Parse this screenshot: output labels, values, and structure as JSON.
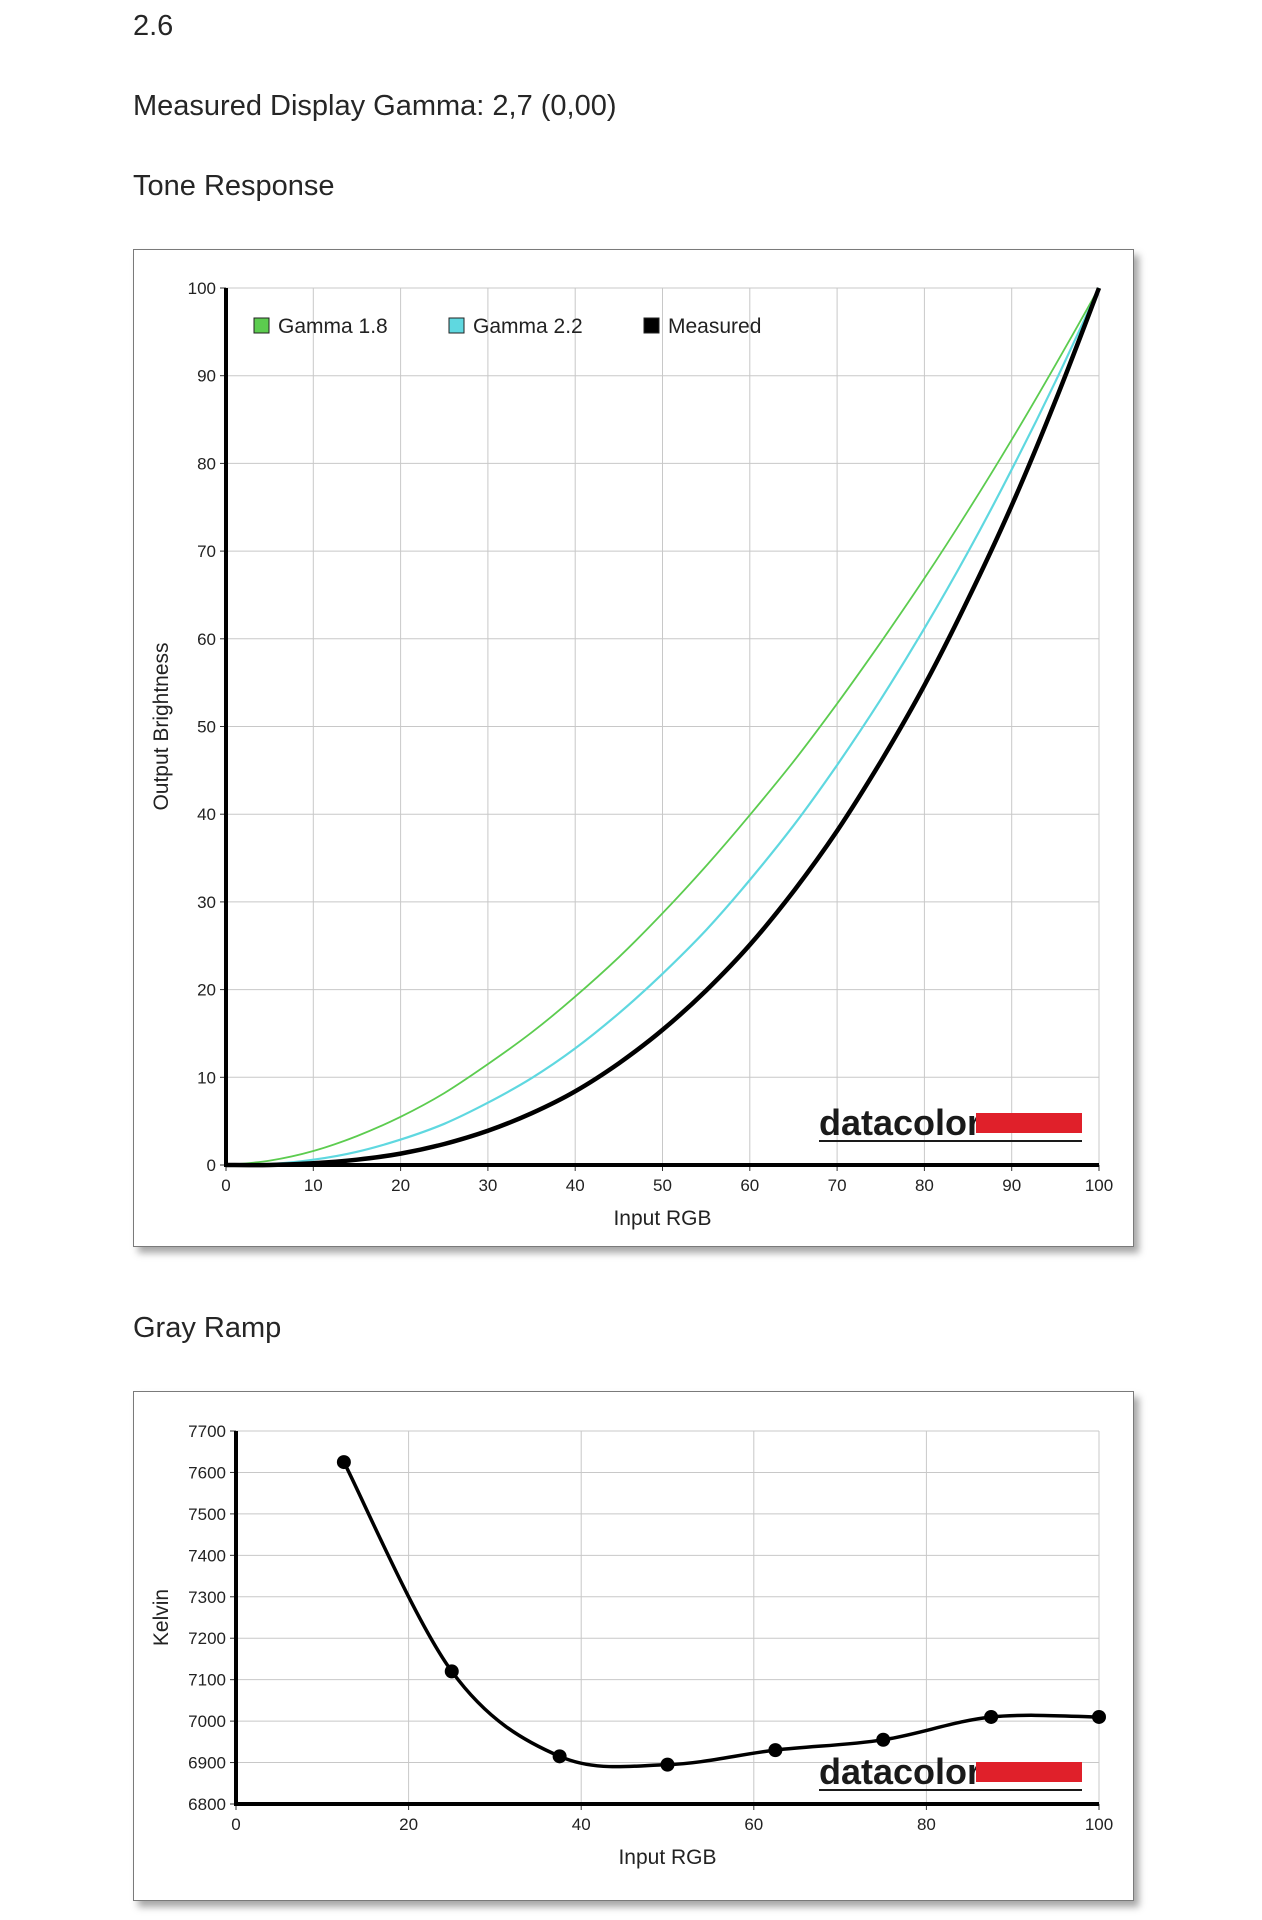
{
  "page": {
    "version_label": "2.6",
    "measured_gamma": "Measured Display Gamma: 2,7 (0,00)",
    "tone_section_title": "Tone Response",
    "gray_section_title": "Gray Ramp",
    "logo": "datacolor"
  },
  "colors": {
    "gamma18": "#5ccc4f",
    "gamma22": "#5fd8e0",
    "measured": "#000000",
    "grid": "#c8c8c8",
    "logo_bar": "#e0202a"
  },
  "chart_data": [
    {
      "type": "line",
      "xlabel": "Input RGB",
      "ylabel": "Output Brightness",
      "xlim": [
        0,
        100
      ],
      "ylim": [
        0,
        100
      ],
      "x_ticks": [
        "0",
        "10",
        "20",
        "30",
        "40",
        "50",
        "60",
        "70",
        "80",
        "90",
        "100"
      ],
      "y_ticks": [
        "0",
        "10",
        "20",
        "30",
        "40",
        "50",
        "60",
        "70",
        "80",
        "90",
        "100"
      ],
      "grid": true,
      "legend_position": "top-left",
      "x": [
        0,
        5,
        10,
        15,
        20,
        25,
        30,
        35,
        40,
        45,
        50,
        55,
        60,
        65,
        70,
        75,
        80,
        85,
        90,
        95,
        100
      ],
      "series": [
        {
          "name": "Gamma 1.8",
          "color": "#5ccc4f",
          "values": [
            0,
            0.5,
            1.6,
            3.3,
            5.5,
            8.2,
            11.5,
            15.1,
            19.2,
            23.7,
            28.7,
            34.1,
            39.9,
            46.0,
            52.6,
            59.6,
            66.9,
            74.6,
            82.7,
            91.2,
            100
          ]
        },
        {
          "name": "Gamma 2.2",
          "color": "#5fd8e0",
          "values": [
            0,
            0.1,
            0.6,
            1.5,
            2.9,
            4.7,
            7.1,
            9.9,
            13.3,
            17.3,
            21.8,
            26.8,
            32.5,
            38.7,
            45.6,
            53.1,
            61.2,
            69.9,
            79.3,
            89.3,
            100
          ]
        },
        {
          "name": "Measured",
          "color": "#000000",
          "values": [
            0,
            0.0,
            0.2,
            0.6,
            1.3,
            2.4,
            3.9,
            5.9,
            8.4,
            11.6,
            15.4,
            19.9,
            25.1,
            31.2,
            38.1,
            46.0,
            54.7,
            64.5,
            75.2,
            87.1,
            100
          ]
        }
      ]
    },
    {
      "type": "line",
      "xlabel": "Input RGB",
      "ylabel": "Kelvin",
      "xlim": [
        0,
        100
      ],
      "ylim": [
        6800,
        7700
      ],
      "x_ticks": [
        "0",
        "20",
        "40",
        "60",
        "80",
        "100"
      ],
      "y_ticks": [
        "6800",
        "6900",
        "7000",
        "7100",
        "7200",
        "7300",
        "7400",
        "7500",
        "7600",
        "7700"
      ],
      "grid": true,
      "x": [
        12.5,
        25,
        37.5,
        50,
        62.5,
        75,
        87.5,
        100
      ],
      "series": [
        {
          "color": "#000000",
          "values": [
            7625,
            7120,
            6915,
            6895,
            6930,
            6955,
            7010,
            7010
          ]
        }
      ]
    }
  ]
}
